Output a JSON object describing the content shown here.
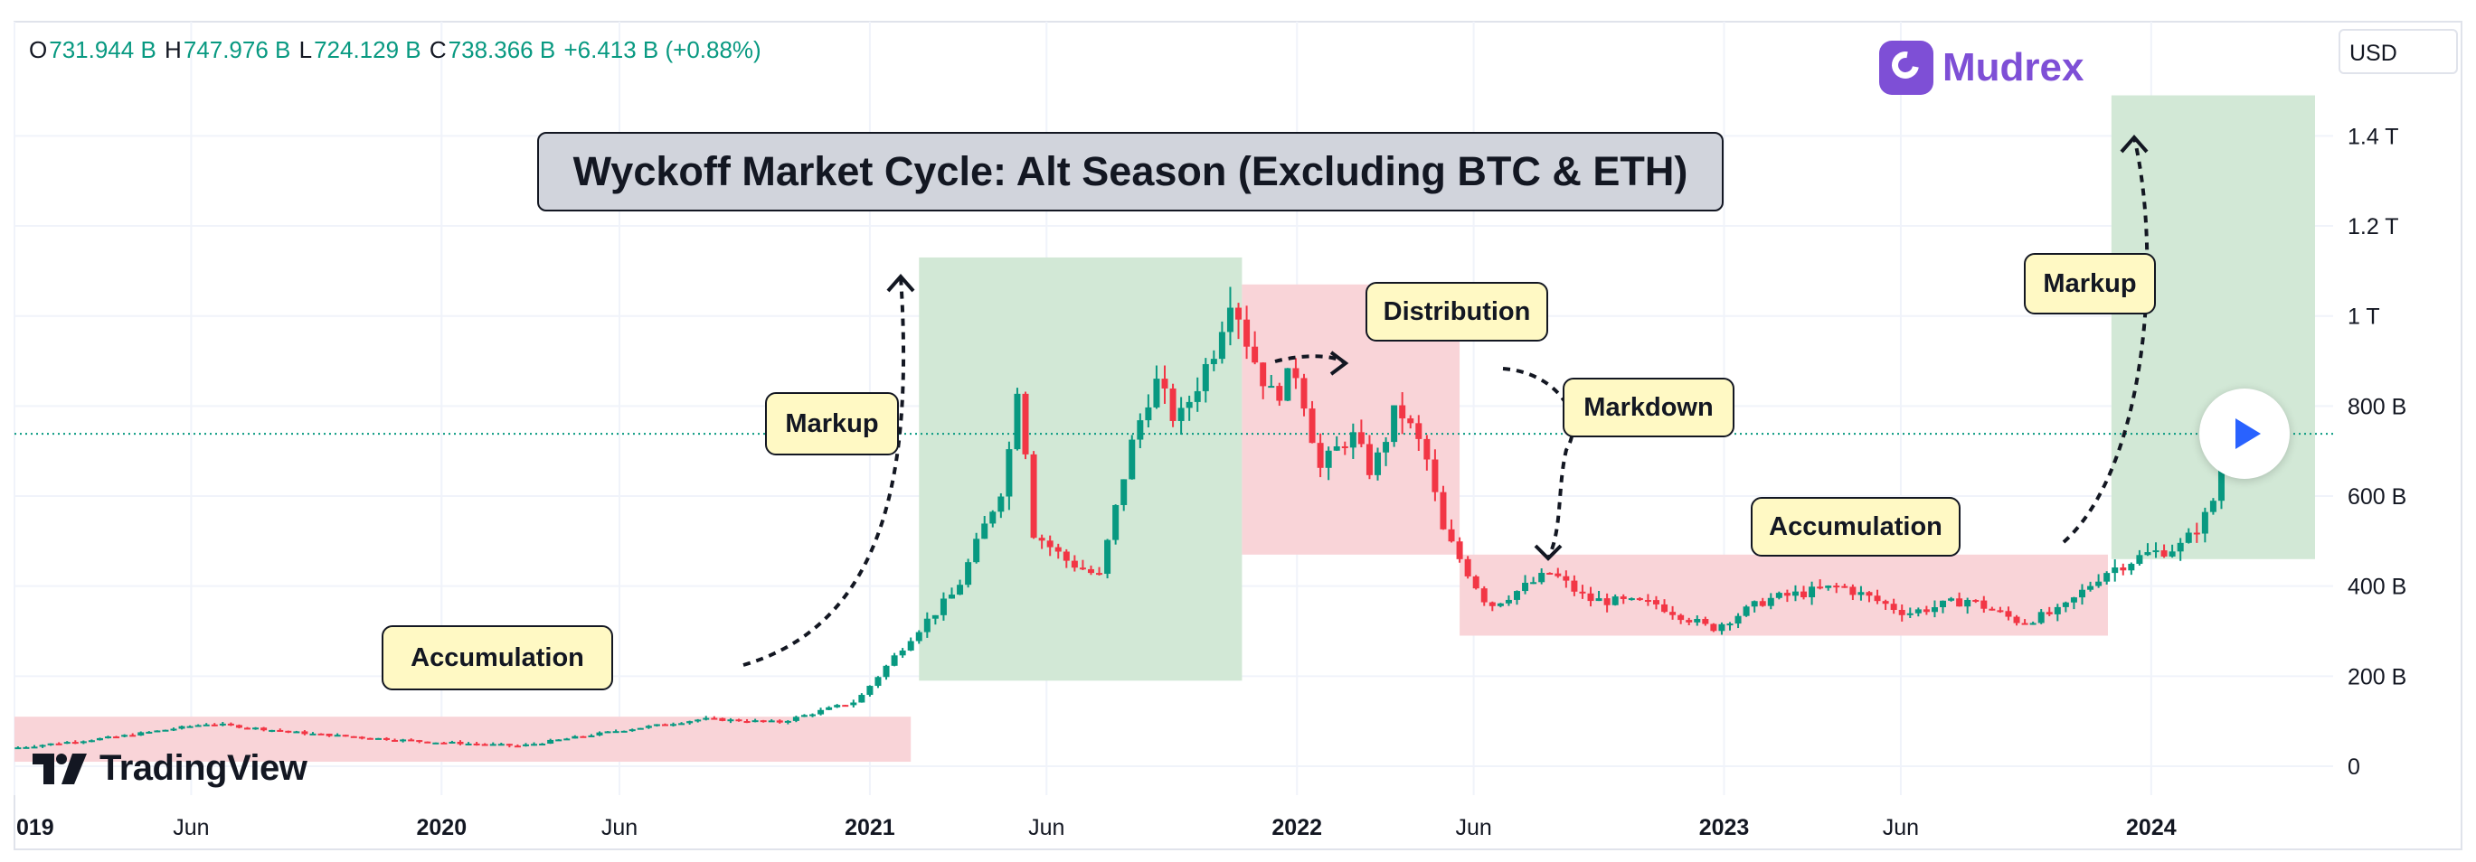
{
  "ohlc": {
    "open_label": "O",
    "open": "731.944 B",
    "high_label": "H",
    "high": "747.976 B",
    "low_label": "L",
    "low": "724.129 B",
    "close_label": "C",
    "close": "738.366 B",
    "change": "+6.413 B (+0.88%)"
  },
  "currency": "USD",
  "brand": {
    "name": "Mudrex",
    "color": "#7e4fd6"
  },
  "platform": {
    "name": "TradingView"
  },
  "colors": {
    "up": "#089981",
    "down": "#f23645",
    "accumulation_zone": "#f9d4d8",
    "markup_zone": "#d2e8d6",
    "label_bg": "#fff9c4",
    "title_bg": "#d1d4dc"
  },
  "annotations": {
    "title": "Wyckoff Market Cycle: Alt Season (Excluding BTC & ETH)",
    "accumulation_1": "Accumulation",
    "markup_1": "Markup",
    "distribution": "Distribution",
    "markdown": "Markdown",
    "accumulation_2": "Accumulation",
    "markup_2": "Markup"
  },
  "chart_data": {
    "type": "candlestick",
    "title": "Wyckoff Market Cycle: Alt Season (Excluding BTC & ETH)",
    "y_unit": "USD market cap (billions)",
    "ylim": [
      0,
      1500
    ],
    "y_ticks": [
      {
        "value": 0,
        "label": "0"
      },
      {
        "value": 200,
        "label": "200 B"
      },
      {
        "value": 400,
        "label": "400 B"
      },
      {
        "value": 600,
        "label": "600 B"
      },
      {
        "value": 800,
        "label": "800 B"
      },
      {
        "value": 1000,
        "label": "1 T"
      },
      {
        "value": 1200,
        "label": "1.2 T"
      },
      {
        "value": 1400,
        "label": "1.4 T"
      }
    ],
    "xlim": [
      "2019-01-01",
      "2024-05-20"
    ],
    "x_ticks": [
      {
        "date": "2019-01-01",
        "label": "019",
        "bold": true
      },
      {
        "date": "2019-06-01",
        "label": "Jun",
        "bold": false
      },
      {
        "date": "2020-01-01",
        "label": "2020",
        "bold": true
      },
      {
        "date": "2020-06-01",
        "label": "Jun",
        "bold": false
      },
      {
        "date": "2021-01-01",
        "label": "2021",
        "bold": true
      },
      {
        "date": "2021-06-01",
        "label": "Jun",
        "bold": false
      },
      {
        "date": "2022-01-01",
        "label": "2022",
        "bold": true
      },
      {
        "date": "2022-06-01",
        "label": "Jun",
        "bold": false
      },
      {
        "date": "2023-01-01",
        "label": "2023",
        "bold": true
      },
      {
        "date": "2023-06-01",
        "label": "Jun",
        "bold": false
      },
      {
        "date": "2024-01-01",
        "label": "2024",
        "bold": true
      }
    ],
    "last_price": 738.366,
    "path": [
      [
        "2019-01-01",
        40
      ],
      [
        "2019-04-01",
        65
      ],
      [
        "2019-06-20",
        95
      ],
      [
        "2019-09-15",
        72
      ],
      [
        "2019-12-20",
        55
      ],
      [
        "2020-03-12",
        45
      ],
      [
        "2020-06-01",
        78
      ],
      [
        "2020-08-15",
        105
      ],
      [
        "2020-10-20",
        98
      ],
      [
        "2020-12-25",
        145
      ],
      [
        "2021-02-10",
        290
      ],
      [
        "2021-03-20",
        390
      ],
      [
        "2021-05-01",
        640
      ],
      [
        "2021-05-12",
        870
      ],
      [
        "2021-05-25",
        520
      ],
      [
        "2021-06-20",
        460
      ],
      [
        "2021-07-20",
        420
      ],
      [
        "2021-08-15",
        700
      ],
      [
        "2021-09-05",
        860
      ],
      [
        "2021-09-25",
        760
      ],
      [
        "2021-10-25",
        920
      ],
      [
        "2021-11-10",
        1060
      ],
      [
        "2021-11-25",
        930
      ],
      [
        "2021-12-15",
        820
      ],
      [
        "2022-01-05",
        880
      ],
      [
        "2022-01-25",
        660
      ],
      [
        "2022-02-20",
        740
      ],
      [
        "2022-03-10",
        650
      ],
      [
        "2022-04-01",
        800
      ],
      [
        "2022-04-25",
        690
      ],
      [
        "2022-05-10",
        520
      ],
      [
        "2022-06-18",
        355
      ],
      [
        "2022-08-10",
        430
      ],
      [
        "2022-09-10",
        370
      ],
      [
        "2022-11-08",
        360
      ],
      [
        "2022-12-25",
        305
      ],
      [
        "2023-02-10",
        370
      ],
      [
        "2023-04-15",
        400
      ],
      [
        "2023-06-10",
        340
      ],
      [
        "2023-08-01",
        370
      ],
      [
        "2023-09-15",
        320
      ],
      [
        "2023-10-20",
        345
      ],
      [
        "2023-11-25",
        430
      ],
      [
        "2023-12-31",
        470
      ],
      [
        "2024-02-01",
        490
      ],
      [
        "2024-02-25",
        570
      ],
      [
        "2024-03-14",
        760
      ],
      [
        "2024-04-01",
        690
      ],
      [
        "2024-04-15",
        750
      ],
      [
        "2024-04-22",
        738
      ]
    ]
  }
}
